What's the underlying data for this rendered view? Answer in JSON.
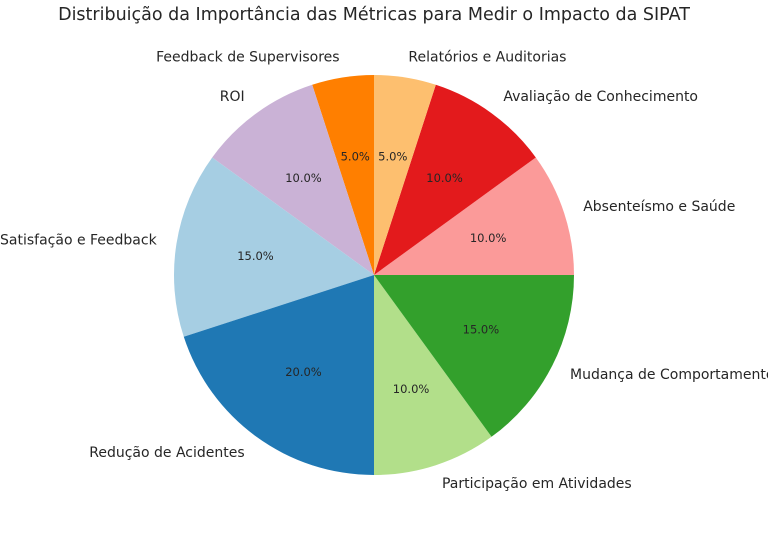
{
  "chart_data": {
    "type": "pie",
    "title": "Distribuição da Importância das Métricas para Medir o Impacto da SIPAT",
    "start_angle_deg": 90,
    "direction": "counterclockwise",
    "slices": [
      {
        "label": "Feedback de Supervisores",
        "value": 5.0,
        "pct_text": "5.0%",
        "color": "#ff7f00"
      },
      {
        "label": "ROI",
        "value": 10.0,
        "pct_text": "10.0%",
        "color": "#cab2d6"
      },
      {
        "label": "Satisfação e Feedback",
        "value": 15.0,
        "pct_text": "15.0%",
        "color": "#a6cee3"
      },
      {
        "label": "Redução de Acidentes",
        "value": 20.0,
        "pct_text": "20.0%",
        "color": "#1f78b4"
      },
      {
        "label": "Participação em Atividades",
        "value": 10.0,
        "pct_text": "10.0%",
        "color": "#b2df8a"
      },
      {
        "label": "Mudança de Comportamento",
        "value": 15.0,
        "pct_text": "15.0%",
        "color": "#33a02c"
      },
      {
        "label": "Absenteísmo e Saúde",
        "value": 10.0,
        "pct_text": "10.0%",
        "color": "#fb9a99"
      },
      {
        "label": "Avaliação de Conhecimento",
        "value": 10.0,
        "pct_text": "10.0%",
        "color": "#e31a1c"
      },
      {
        "label": "Relatórios e Auditorias",
        "value": 5.0,
        "pct_text": "5.0%",
        "color": "#fdbf6f"
      }
    ]
  }
}
